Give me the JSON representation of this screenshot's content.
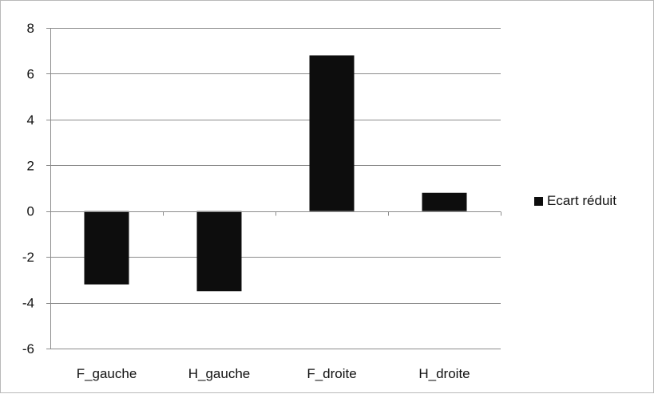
{
  "chart_data": {
    "type": "bar",
    "categories": [
      "F_gauche",
      "H_gauche",
      "F_droite",
      "H_droite"
    ],
    "series": [
      {
        "name": "Ecart réduit",
        "values": [
          -3.2,
          -3.5,
          6.8,
          0.8
        ],
        "color": "#0d0d0d"
      }
    ],
    "title": "",
    "xlabel": "",
    "ylabel": "",
    "ylim": [
      -6,
      8
    ],
    "yticks": [
      "8",
      "6",
      "4",
      "2",
      "0",
      "-2",
      "-4",
      "-6"
    ],
    "ytick_values": [
      8,
      6,
      4,
      2,
      0,
      -2,
      -4,
      -6
    ],
    "grid": true,
    "legend_position": "right"
  }
}
